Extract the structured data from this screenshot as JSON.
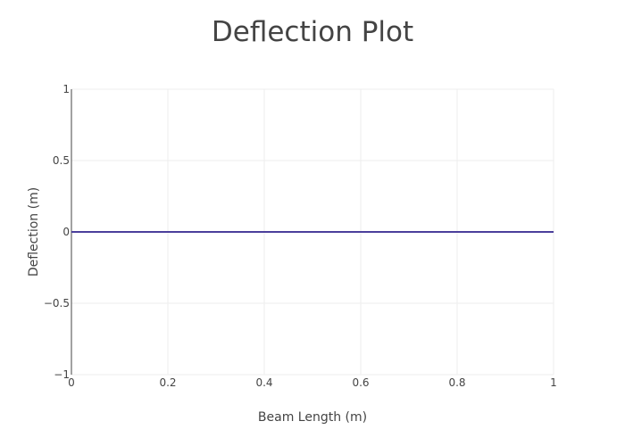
{
  "chart_data": {
    "type": "line",
    "title": "Deflection Plot",
    "xlabel": "Beam Length (m)",
    "ylabel": "Deflection (m)",
    "xlim": [
      0,
      1
    ],
    "ylim": [
      -1,
      1
    ],
    "x_ticks": [
      0,
      0.2,
      0.4,
      0.6,
      0.8,
      1
    ],
    "x_tick_labels": [
      "0",
      "0.2",
      "0.4",
      "0.6",
      "0.8",
      "1"
    ],
    "y_ticks": [
      1,
      0.5,
      0,
      -0.5,
      -1
    ],
    "y_tick_labels": [
      "1",
      "0.5",
      "0",
      "−0.5",
      "−1"
    ],
    "grid": true,
    "series": [
      {
        "x": [
          0,
          1
        ],
        "y": [
          0,
          0
        ],
        "color": "#4b3f9b"
      }
    ]
  }
}
